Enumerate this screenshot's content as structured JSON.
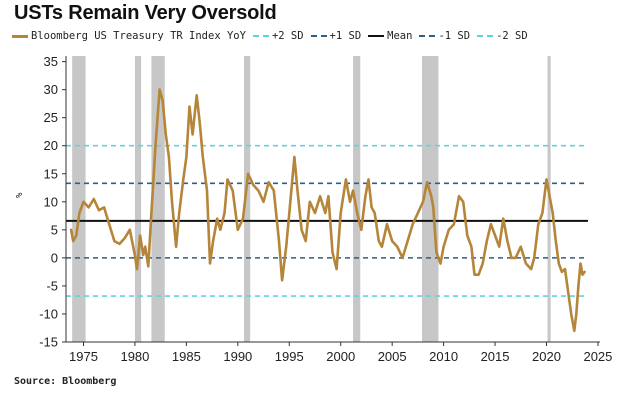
{
  "header": {
    "title": "USTs Remain Very Oversold"
  },
  "footer": {
    "source": "Source: Bloomberg"
  },
  "legend": {
    "items": [
      {
        "label": "Bloomberg US Treasury TR Index YoY",
        "color": "#b5853a",
        "style": "solid"
      },
      {
        "label": "+2 SD",
        "color": "#5fd3e6",
        "style": "dashed"
      },
      {
        "label": "+1 SD",
        "color": "#2e5f85",
        "style": "dashed"
      },
      {
        "label": "Mean",
        "color": "#111111",
        "style": "solid"
      },
      {
        "label": "-1 SD",
        "color": "#2e5f85",
        "style": "dashed"
      },
      {
        "label": "-2 SD",
        "color": "#5fd3e6",
        "style": "dashed"
      }
    ]
  },
  "chart_data": {
    "type": "line",
    "title": "USTs Remain Very Oversold",
    "ylabel": "%",
    "xlabel": "",
    "xlim": [
      1973.3,
      2025.2
    ],
    "ylim": [
      -15,
      36
    ],
    "x_ticks": [
      1975,
      1980,
      1985,
      1990,
      1995,
      2000,
      2005,
      2010,
      2015,
      2020,
      2025
    ],
    "y_ticks": [
      35,
      30,
      25,
      20,
      15,
      10,
      5,
      0,
      -5,
      -10,
      -15
    ],
    "reference_lines": [
      {
        "name": "+2 SD",
        "y": 20,
        "color": "#5fd3e6",
        "style": "dashed"
      },
      {
        "name": "+1 SD",
        "y": 13.3,
        "color": "#2e5f85",
        "style": "dashed"
      },
      {
        "name": "Mean",
        "y": 6.6,
        "color": "#111111",
        "style": "solid"
      },
      {
        "name": "-1 SD",
        "y": 0,
        "color": "#2e5f85",
        "style": "dashed"
      },
      {
        "name": "-2 SD",
        "y": -6.8,
        "color": "#5fd3e6",
        "style": "dashed"
      }
    ],
    "recessions": [
      [
        1973.9,
        1975.2
      ],
      [
        1980.0,
        1980.6
      ],
      [
        1981.6,
        1982.9
      ],
      [
        1990.6,
        1991.2
      ],
      [
        2001.2,
        2001.9
      ],
      [
        2007.9,
        2009.5
      ],
      [
        2020.1,
        2020.4
      ]
    ],
    "recession_color": "#bdbdbd",
    "series": [
      {
        "name": "Bloomberg US Treasury TR Index YoY",
        "color": "#b5853a",
        "x": [
          1973.8,
          1974.0,
          1974.3,
          1974.6,
          1975.0,
          1975.5,
          1976.0,
          1976.5,
          1977.0,
          1977.5,
          1978.0,
          1978.5,
          1979.0,
          1979.5,
          1980.0,
          1980.2,
          1980.5,
          1980.8,
          1981.0,
          1981.3,
          1981.6,
          1982.0,
          1982.4,
          1982.7,
          1983.0,
          1983.3,
          1983.6,
          1984.0,
          1984.3,
          1984.7,
          1985.0,
          1985.3,
          1985.6,
          1986.0,
          1986.3,
          1986.6,
          1987.0,
          1987.3,
          1987.6,
          1988.0,
          1988.3,
          1988.7,
          1989.0,
          1989.5,
          1990.0,
          1990.5,
          1991.0,
          1991.5,
          1992.0,
          1992.5,
          1993.0,
          1993.5,
          1994.0,
          1994.3,
          1994.7,
          1995.0,
          1995.5,
          1995.8,
          1996.2,
          1996.6,
          1997.0,
          1997.5,
          1998.0,
          1998.5,
          1998.8,
          1999.2,
          1999.6,
          2000.0,
          2000.5,
          2000.9,
          2001.2,
          2001.6,
          2002.0,
          2002.4,
          2002.7,
          2003.0,
          2003.3,
          2003.7,
          2004.0,
          2004.5,
          2005.0,
          2005.5,
          2006.0,
          2006.5,
          2007.0,
          2007.5,
          2008.0,
          2008.4,
          2008.8,
          2009.0,
          2009.3,
          2009.7,
          2010.0,
          2010.5,
          2011.0,
          2011.5,
          2011.9,
          2012.3,
          2012.7,
          2013.0,
          2013.4,
          2013.8,
          2014.2,
          2014.6,
          2015.0,
          2015.4,
          2015.8,
          2016.2,
          2016.6,
          2017.0,
          2017.5,
          2018.0,
          2018.5,
          2018.8,
          2019.2,
          2019.6,
          2020.0,
          2020.3,
          2020.6,
          2020.9,
          2021.2,
          2021.5,
          2021.8,
          2022.1,
          2022.4,
          2022.7,
          2022.9,
          2023.1,
          2023.3,
          2023.5,
          2023.7
        ],
        "y": [
          5.0,
          3.0,
          4.0,
          8.0,
          10.0,
          9.0,
          10.5,
          8.5,
          9.0,
          6.0,
          3.0,
          2.5,
          3.5,
          5.0,
          0.5,
          -2.0,
          4.0,
          0.5,
          2.0,
          -1.5,
          8.0,
          20.0,
          30.0,
          28.0,
          22.0,
          18.0,
          10.0,
          2.0,
          8.0,
          14.0,
          18.0,
          27.0,
          22.0,
          29.0,
          24.0,
          18.0,
          12.0,
          -1.0,
          3.0,
          7.0,
          5.0,
          8.0,
          14.0,
          12.0,
          5.0,
          7.0,
          15.0,
          13.0,
          12.0,
          10.0,
          13.5,
          12.0,
          3.0,
          -4.0,
          2.0,
          8.0,
          18.0,
          12.0,
          5.0,
          3.0,
          10.0,
          8.0,
          11.0,
          8.0,
          11.0,
          1.0,
          -2.0,
          8.0,
          14.0,
          10.0,
          12.0,
          8.0,
          5.0,
          11.0,
          14.0,
          9.0,
          8.0,
          3.0,
          2.0,
          6.0,
          3.0,
          2.0,
          0.0,
          3.0,
          6.0,
          8.0,
          10.0,
          13.5,
          11.0,
          9.0,
          1.0,
          -1.0,
          2.0,
          5.0,
          6.0,
          11.0,
          10.0,
          4.0,
          2.0,
          -3.0,
          -3.0,
          -1.0,
          3.0,
          6.0,
          4.0,
          2.0,
          7.0,
          3.0,
          0.0,
          0.0,
          2.0,
          -1.0,
          -2.0,
          0.0,
          6.0,
          8.0,
          14.0,
          11.0,
          8.0,
          3.0,
          -1.0,
          -2.5,
          -2.0,
          -6.0,
          -10.0,
          -13.0,
          -10.0,
          -5.0,
          -1.0,
          -3.0,
          -2.5
        ]
      }
    ]
  }
}
